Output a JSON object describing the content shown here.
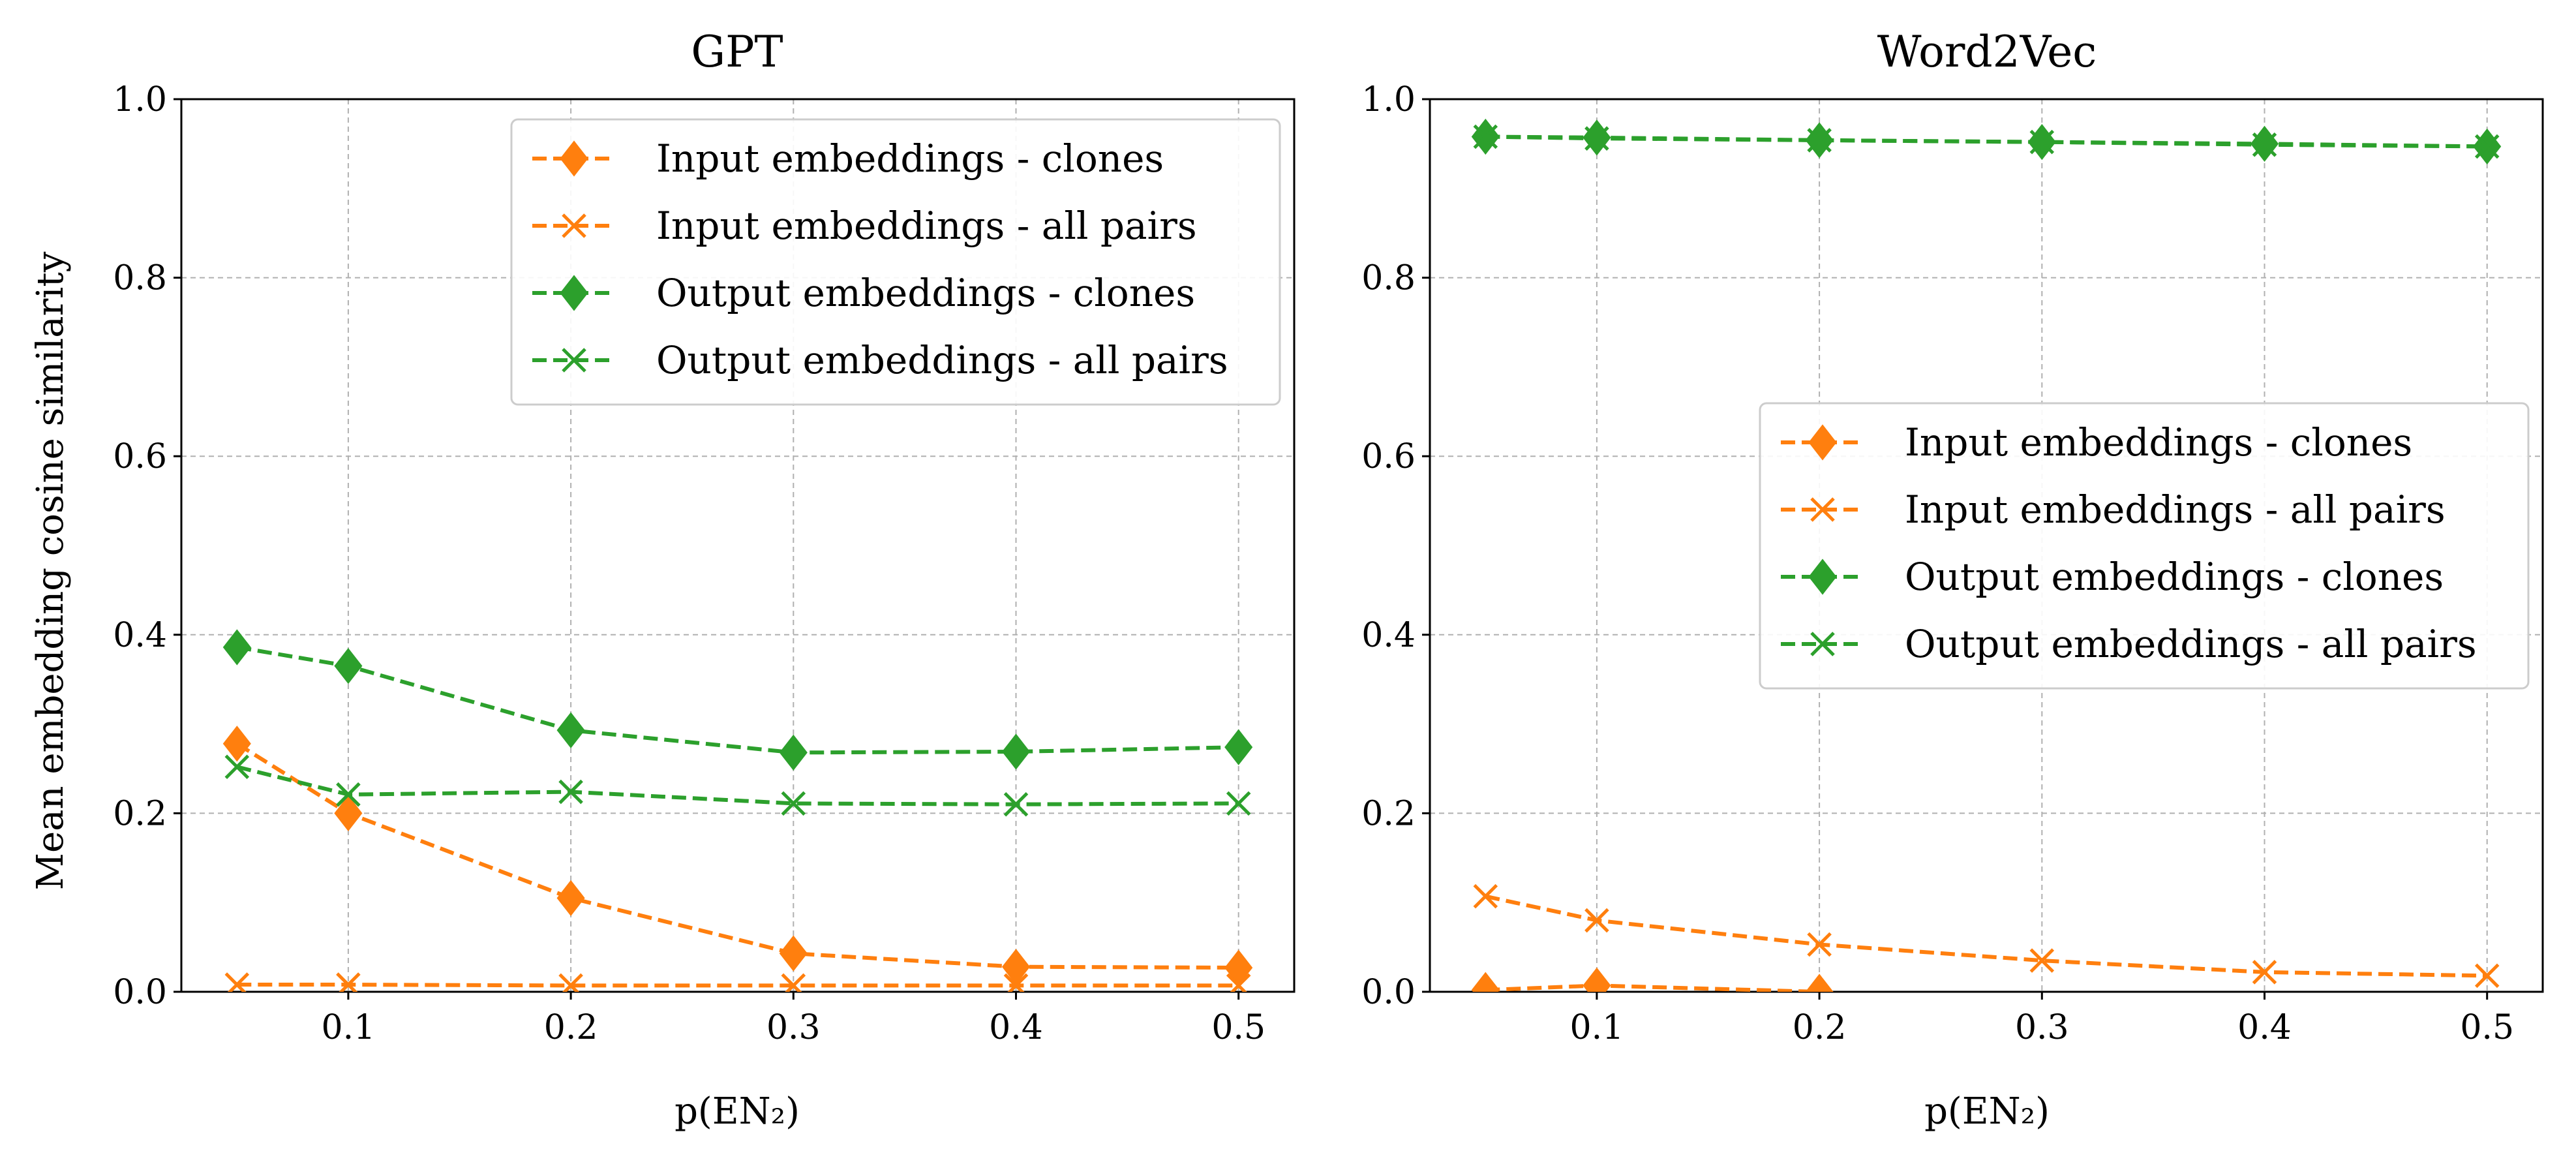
{
  "chart_data": [
    {
      "type": "line",
      "title": "GPT",
      "xlabel": "p(EN₂)",
      "ylabel": "Mean embedding cosine similarity",
      "xlim": [
        0.025,
        0.525
      ],
      "ylim": [
        0.0,
        1.0
      ],
      "x_ticks": [
        "0.1",
        "0.2",
        "0.3",
        "0.4",
        "0.5"
      ],
      "y_ticks": [
        "0.0",
        "0.2",
        "0.4",
        "0.6",
        "0.8",
        "1.0"
      ],
      "grid": true,
      "legend_position": "upper right",
      "x": [
        0.05,
        0.1,
        0.2,
        0.3,
        0.4,
        0.5
      ],
      "series": [
        {
          "name": "Input embeddings - clones",
          "color": "#ff7f0e",
          "marker": "diamond",
          "values": [
            0.278,
            0.2,
            0.105,
            0.043,
            0.028,
            0.027
          ]
        },
        {
          "name": "Input embeddings - all pairs",
          "color": "#ff7f0e",
          "marker": "x",
          "values": [
            0.008,
            0.008,
            0.007,
            0.007,
            0.007,
            0.007
          ]
        },
        {
          "name": "Output embeddings - clones",
          "color": "#2ca02c",
          "marker": "diamond",
          "values": [
            0.386,
            0.365,
            0.293,
            0.268,
            0.269,
            0.274
          ]
        },
        {
          "name": "Output embeddings - all pairs",
          "color": "#2ca02c",
          "marker": "x",
          "values": [
            0.252,
            0.221,
            0.224,
            0.211,
            0.21,
            0.211
          ]
        }
      ]
    },
    {
      "type": "line",
      "title": "Word2Vec",
      "xlabel": "p(EN₂)",
      "ylabel": "",
      "xlim": [
        0.025,
        0.525
      ],
      "ylim": [
        0.0,
        1.0
      ],
      "x_ticks": [
        "0.1",
        "0.2",
        "0.3",
        "0.4",
        "0.5"
      ],
      "y_ticks": [
        "0.0",
        "0.2",
        "0.4",
        "0.6",
        "0.8",
        "1.0"
      ],
      "grid": true,
      "legend_position": "center right",
      "x": [
        0.05,
        0.1,
        0.2,
        0.3,
        0.4,
        0.5
      ],
      "series": [
        {
          "name": "Input embeddings - clones",
          "color": "#ff7f0e",
          "marker": "diamond",
          "values": [
            0.002,
            0.007,
            0.0,
            null,
            null,
            null
          ]
        },
        {
          "name": "Input embeddings - all pairs",
          "color": "#ff7f0e",
          "marker": "x",
          "values": [
            0.107,
            0.08,
            0.053,
            0.035,
            0.022,
            0.018
          ]
        },
        {
          "name": "Output embeddings - clones",
          "color": "#2ca02c",
          "marker": "diamond",
          "values": [
            0.958,
            0.957,
            0.954,
            0.952,
            0.95,
            0.947
          ]
        },
        {
          "name": "Output embeddings - all pairs",
          "color": "#2ca02c",
          "marker": "x",
          "values": [
            0.958,
            0.956,
            0.954,
            0.952,
            0.949,
            0.947
          ]
        }
      ]
    }
  ]
}
